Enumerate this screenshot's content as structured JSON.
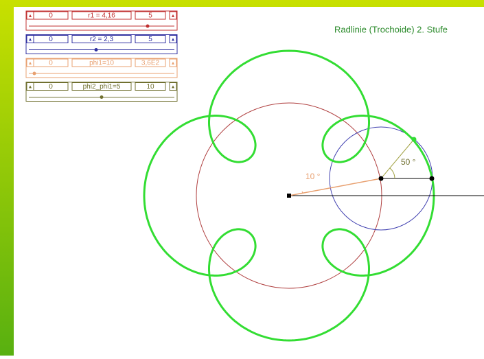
{
  "title": "Radlinie (Trochoide) 2. Stufe",
  "sliders": [
    {
      "min": "0",
      "label": "r1 = 4,16",
      "max": "5",
      "color": "#c03030"
    },
    {
      "min": "0",
      "label": "r2 = 2,3",
      "max": "5",
      "color": "#3030a0"
    },
    {
      "min": "0",
      "label": "phi1=10",
      "max": "3,6E2",
      "color": "#e8a070"
    },
    {
      "min": "0",
      "label": "phi2_phi1=5",
      "max": "10",
      "color": "#707030"
    }
  ],
  "angles": [
    "10 °",
    "50 °"
  ]
}
